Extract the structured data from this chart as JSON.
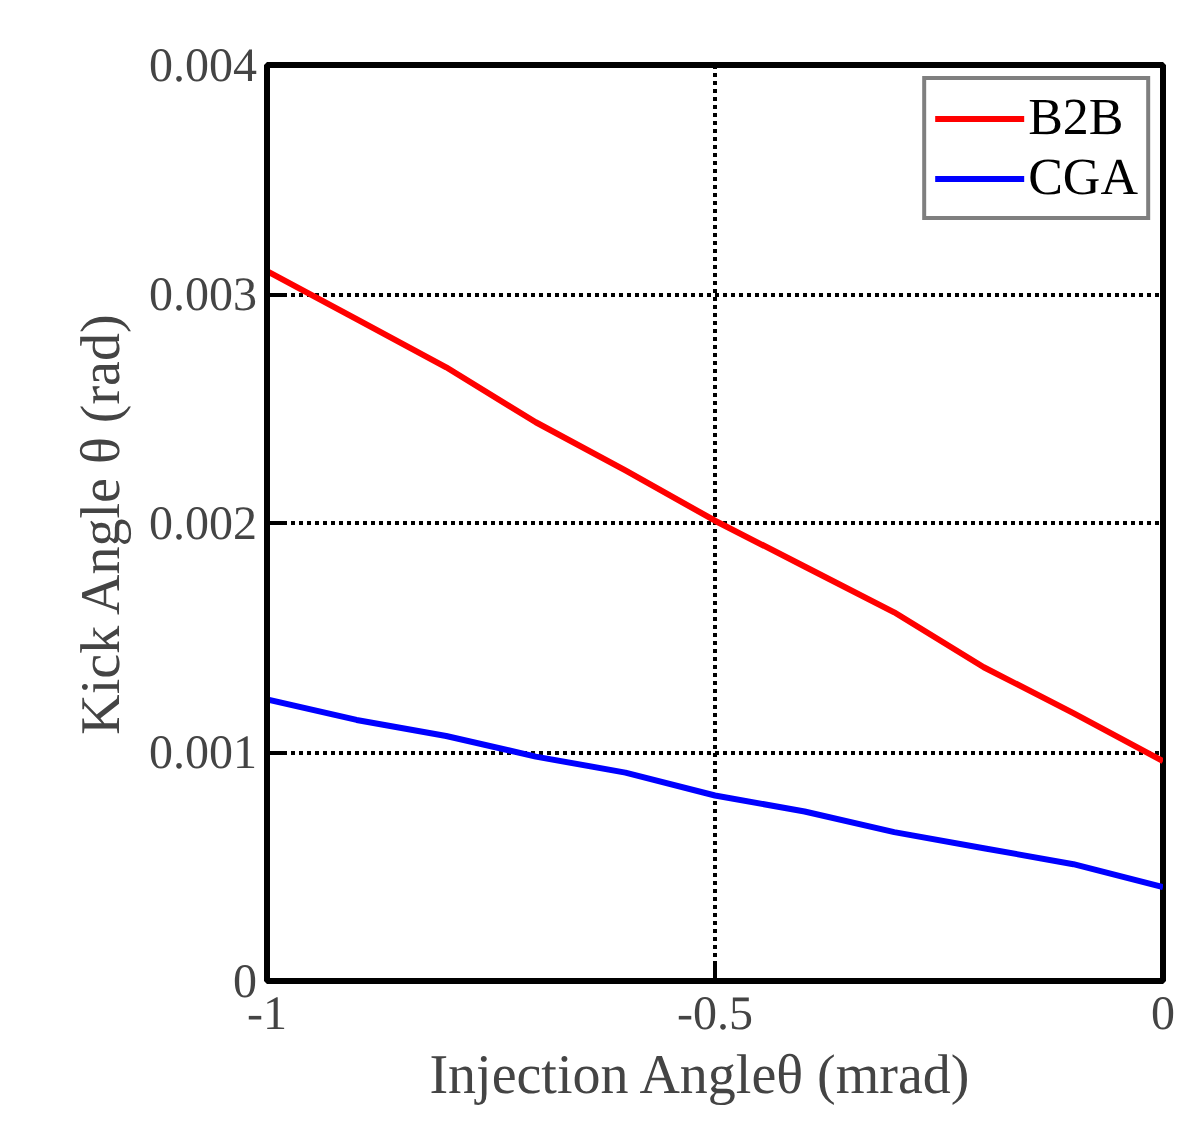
{
  "chart_data": {
    "type": "line",
    "xlabel": "Injection Angleθ   (mrad)",
    "ylabel": "Kick Angle θ (rad)",
    "x": [
      -1,
      -0.9,
      -0.8,
      -0.7,
      -0.6,
      -0.5,
      -0.4,
      -0.3,
      -0.2,
      -0.1,
      0
    ],
    "series": [
      {
        "name": "B2B",
        "color": "#ff0000",
        "values": [
          0.0031,
          0.00289,
          0.00268,
          0.00244,
          0.00223,
          0.00201,
          0.00181,
          0.00161,
          0.00137,
          0.00117,
          0.00096
        ]
      },
      {
        "name": "CGA",
        "color": "#0000ff",
        "values": [
          0.00123,
          0.00114,
          0.00107,
          0.00098,
          0.00091,
          0.00081,
          0.00074,
          0.00065,
          0.00058,
          0.00051,
          0.00041
        ]
      }
    ],
    "xlim": [
      -1,
      0
    ],
    "ylim": [
      0,
      0.004
    ],
    "xticks": [
      -1,
      -0.5,
      0
    ],
    "yticks": [
      0,
      0.001,
      0.002,
      0.003,
      0.004
    ],
    "grid": true,
    "legend": "top right",
    "line_style": "solid",
    "marker": "none"
  }
}
